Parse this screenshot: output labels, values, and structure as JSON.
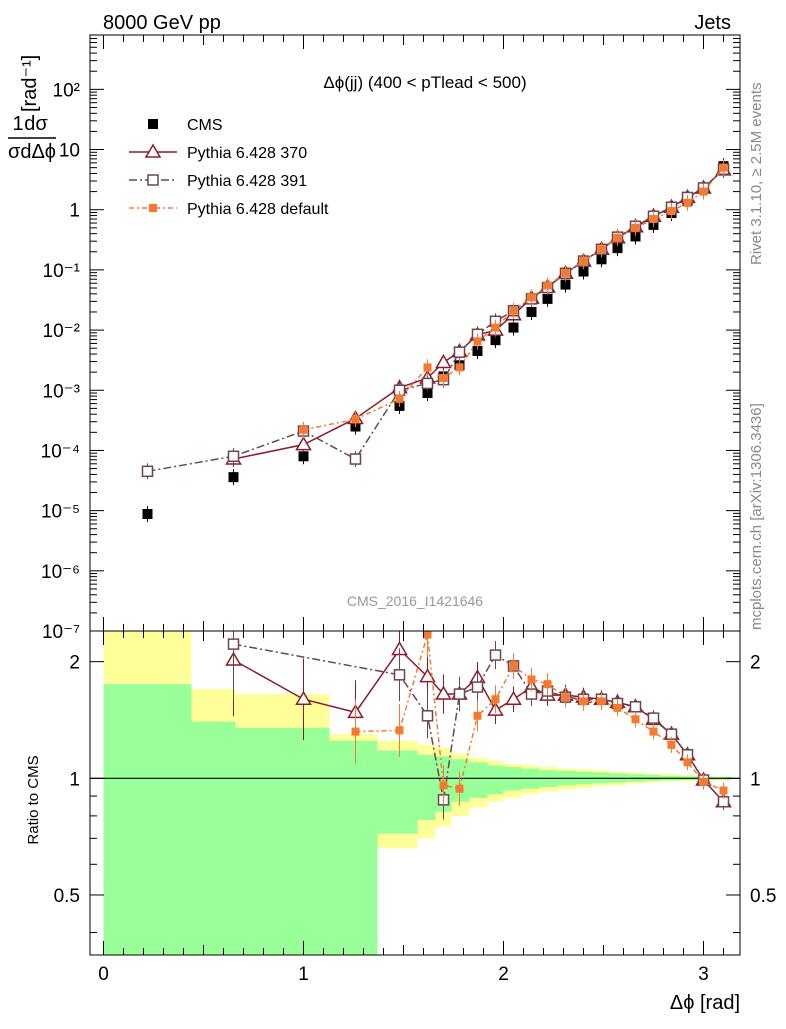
{
  "header": {
    "left": "8000 GeV pp",
    "right": "Jets"
  },
  "side_labels": {
    "rivet": "Rivet 3.1.10, ≥ 2.5M events",
    "mcplots": "mcplots.cern.ch [arXiv:1306.3436]"
  },
  "watermark": "CMS_2016_I1421646",
  "chart_data": [
    {
      "type": "scatter",
      "title": "Δϕ(jj) (400 < pTlead <  500)",
      "ylabel": "1/σ dσ/dΔϕ [rad⁻¹]",
      "xlabel": "Δϕ [rad]",
      "yscale": "log",
      "xlim": [
        -0.07,
        3.2
      ],
      "ylim": [
        1e-07,
        800
      ],
      "xticks": [
        "0",
        "1",
        "2",
        "3"
      ],
      "yticks": [
        "10⁻⁷",
        "10⁻⁶",
        "10⁻⁵",
        "10⁻⁴",
        "10⁻³",
        "10⁻²",
        "10⁻¹",
        "1",
        "10",
        "10²"
      ],
      "legend": [
        "CMS",
        "Pythia 6.428 370",
        "Pythia 6.428 391",
        "Pythia 6.428 default"
      ],
      "legend_position": "top-left",
      "x": [
        0.22,
        0.65,
        1.0,
        1.26,
        1.48,
        1.62,
        1.7,
        1.78,
        1.87,
        1.96,
        2.05,
        2.14,
        2.22,
        2.31,
        2.4,
        2.49,
        2.57,
        2.66,
        2.75,
        2.84,
        2.92,
        3.0,
        3.1
      ],
      "series": [
        {
          "name": "CMS",
          "color": "#000000",
          "marker": "filled-square",
          "values": [
            8.8e-06,
            3.6e-05,
            8e-05,
            0.00025,
            0.00055,
            0.0009,
            0.0017,
            0.0026,
            0.0045,
            0.0068,
            0.011,
            0.02,
            0.033,
            0.057,
            0.094,
            0.15,
            0.23,
            0.36,
            0.56,
            0.88,
            1.4,
            2.3,
            5.3
          ]
        },
        {
          "name": "Pythia 6.428 370",
          "color": "#8b1a2c",
          "marker": "open-triangle",
          "values": [
            null,
            7.2e-05,
            0.000125,
            0.00034,
            0.0011,
            0.0016,
            0.0029,
            0.0044,
            0.0083,
            0.01,
            0.018,
            0.034,
            0.052,
            0.088,
            0.14,
            0.22,
            0.34,
            0.52,
            0.78,
            1.1,
            1.6,
            2.3,
            4.6
          ]
        },
        {
          "name": "Pythia 6.428 391",
          "color": "#6b4550",
          "marker": "open-square",
          "values": [
            4.5e-05,
            8e-05,
            0.00021,
            7.2e-05,
            0.001,
            0.0013,
            0.0015,
            0.0043,
            0.0085,
            0.014,
            0.021,
            0.033,
            0.051,
            0.088,
            0.14,
            0.22,
            0.35,
            0.53,
            0.78,
            1.1,
            1.6,
            2.3,
            4.7
          ]
        },
        {
          "name": "Pythia 6.428 default",
          "color": "#f47a30",
          "marker": "filled-square-small",
          "values": [
            null,
            null,
            0.00022,
            0.00033,
            0.00072,
            0.0024,
            0.0016,
            0.0024,
            0.0065,
            0.011,
            0.021,
            0.035,
            0.055,
            0.089,
            0.14,
            0.22,
            0.34,
            0.5,
            0.7,
            0.95,
            1.3,
            2.0,
            5.0
          ]
        }
      ]
    },
    {
      "type": "scatter",
      "ylabel": "Ratio to CMS",
      "xlabel": "Δϕ [rad]",
      "yscale": "log",
      "xlim": [
        -0.07,
        3.2
      ],
      "ylim": [
        0.35,
        2.4
      ],
      "xticks": [
        "0",
        "1",
        "2",
        "3"
      ],
      "yticks": [
        "0.5",
        "1",
        "2"
      ],
      "reference_line": 1,
      "uncertainty_bands": {
        "edges": [
          0,
          0.44,
          0.66,
          1.13,
          1.37,
          1.57,
          1.66,
          1.74,
          1.83,
          1.92,
          2.0,
          2.09,
          2.18,
          2.27,
          2.36,
          2.44,
          2.53,
          2.62,
          2.71,
          2.79,
          2.88,
          2.97,
          3.05,
          3.14
        ],
        "green_low": [
          0.35,
          0.35,
          0.35,
          0.35,
          0.72,
          0.78,
          0.82,
          0.87,
          0.89,
          0.91,
          0.93,
          0.94,
          0.95,
          0.96,
          0.965,
          0.97,
          0.975,
          0.98,
          0.985,
          0.988,
          0.99,
          0.99,
          0.992
        ],
        "green_high": [
          1.75,
          1.4,
          1.35,
          1.25,
          1.18,
          1.15,
          1.14,
          1.12,
          1.1,
          1.08,
          1.07,
          1.06,
          1.05,
          1.045,
          1.04,
          1.035,
          1.03,
          1.025,
          1.02,
          1.015,
          1.012,
          1.01,
          1.008
        ],
        "yellow_low": [
          0.35,
          0.65,
          0.55,
          0.35,
          0.66,
          0.7,
          0.75,
          0.8,
          0.84,
          0.87,
          0.89,
          0.91,
          0.925,
          0.935,
          0.945,
          0.955,
          0.96,
          0.97,
          0.975,
          0.98,
          0.983,
          0.985,
          0.988
        ],
        "yellow_high": [
          2.4,
          1.7,
          1.65,
          1.3,
          1.25,
          1.22,
          1.2,
          1.16,
          1.13,
          1.11,
          1.09,
          1.08,
          1.07,
          1.06,
          1.055,
          1.05,
          1.04,
          1.035,
          1.03,
          1.025,
          1.02,
          1.015,
          1.012
        ]
      },
      "x": [
        0.22,
        0.65,
        1.0,
        1.26,
        1.48,
        1.62,
        1.7,
        1.78,
        1.87,
        1.96,
        2.05,
        2.14,
        2.22,
        2.31,
        2.4,
        2.49,
        2.57,
        2.66,
        2.75,
        2.84,
        2.92,
        3.0,
        3.1
      ],
      "series": [
        {
          "name": "Pythia 6.428 370",
          "color": "#8b1a2c",
          "marker": "open-triangle",
          "values": [
            null,
            2.02,
            1.6,
            1.48,
            2.15,
            1.83,
            1.65,
            1.65,
            1.82,
            1.5,
            1.6,
            1.72,
            1.64,
            1.64,
            1.62,
            1.6,
            1.57,
            1.53,
            1.42,
            1.3,
            1.15,
            0.99,
            0.87
          ]
        },
        {
          "name": "Pythia 6.428 391",
          "color": "#6b4550",
          "marker": "open-square",
          "values": [
            null,
            2.22,
            null,
            null,
            1.85,
            1.45,
            0.88,
            1.65,
            1.72,
            2.08,
            1.95,
            1.65,
            1.68,
            1.62,
            1.6,
            1.6,
            1.56,
            1.53,
            1.43,
            1.3,
            1.15,
            0.99,
            0.87
          ]
        },
        {
          "name": "Pythia 6.428 default",
          "color": "#f47a30",
          "marker": "filled-square-small",
          "values": [
            null,
            null,
            null,
            1.32,
            1.33,
            2.35,
            0.96,
            0.94,
            1.45,
            1.6,
            1.95,
            1.8,
            1.75,
            1.62,
            1.58,
            1.58,
            1.52,
            1.42,
            1.32,
            1.22,
            1.1,
            0.98,
            0.93
          ]
        }
      ]
    }
  ]
}
